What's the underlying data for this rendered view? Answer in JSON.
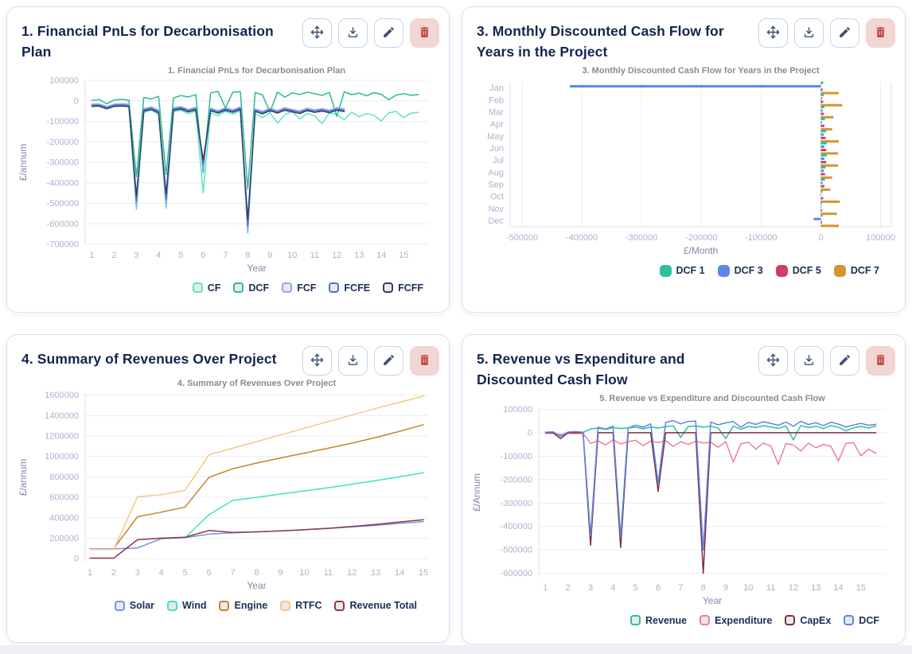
{
  "panels": [
    {
      "title": "1. Financial PnLs for Decarbonisation Plan"
    },
    {
      "title": "3. Monthly Discounted Cash Flow for Years in the Project"
    },
    {
      "title": "4. Summary of Revenues Over Project"
    },
    {
      "title": "5. Revenue vs Expenditure and Discounted Cash Flow"
    }
  ],
  "toolbar": {
    "buttons": [
      {
        "name": "move",
        "icon": "move-icon"
      },
      {
        "name": "download",
        "icon": "download-icon"
      },
      {
        "name": "edit",
        "icon": "pencil-icon"
      },
      {
        "name": "delete",
        "icon": "trash-icon"
      }
    ]
  },
  "colors": {
    "title_navy": "#14244e",
    "tick_label": "#a9b3cc",
    "axis_label": "#7f89a6",
    "chart_title_gray": "#8b8b8b",
    "grid": "#ebecf1",
    "panel_border": "#dcdff2",
    "button_icon": "#3f5175",
    "delete_icon": "#c2413b",
    "delete_bg": "#f2d6d4"
  },
  "chart_data": [
    {
      "type": "line",
      "title": "1. Financial PnLs for Decarbonisation Plan",
      "xlabel": "Year",
      "ylabel": "£/annum",
      "xlim": [
        0.7,
        16.1
      ],
      "ylim": [
        -700000,
        100000
      ],
      "xticks": [
        1,
        2,
        3,
        4,
        5,
        6,
        7,
        8,
        9,
        10,
        11,
        12,
        13,
        14,
        15
      ],
      "yticks": [
        100000,
        0,
        -100000,
        -200000,
        -300000,
        -400000,
        -500000,
        -600000,
        -700000
      ],
      "grid": "horizontal",
      "legend_position": "bottom-right",
      "legend_marker": "outline",
      "series": [
        {
          "name": "CF",
          "color": "#5ce4c2",
          "x0": 1,
          "dx": 0.3333,
          "y": [
            -20000,
            -18000,
            -33000,
            -19000,
            -17000,
            -21000,
            -530000,
            -58000,
            -44000,
            -68000,
            -525000,
            -52000,
            -46000,
            -64000,
            -50000,
            -450000,
            -58000,
            -72000,
            -52000,
            -66000,
            -48000,
            -640000,
            -62000,
            -82000,
            -58000,
            -108000,
            -68000,
            -52000,
            -88000,
            -62000,
            -72000,
            -112000,
            -58000,
            -68000,
            -92000,
            -55000,
            -78000,
            -62000,
            -70000,
            -98000,
            -58000,
            -52000,
            -82000,
            -60000,
            -56000
          ]
        },
        {
          "name": "DCF",
          "color": "#2bb99b",
          "x0": 1,
          "dx": 0.3333,
          "y": [
            3000,
            6000,
            -14000,
            4000,
            7000,
            3000,
            -370000,
            16000,
            9000,
            22000,
            -360000,
            14000,
            26000,
            19000,
            31000,
            -350000,
            39000,
            46000,
            -35000,
            43000,
            45000,
            -430000,
            41000,
            28000,
            -55000,
            43000,
            18000,
            39000,
            31000,
            42000,
            35000,
            27000,
            41000,
            -75000,
            44000,
            30000,
            38000,
            25000,
            40000,
            32000,
            5000,
            28000,
            35000,
            27000,
            31000
          ]
        },
        {
          "name": "FCF",
          "color": "#8fa7f3",
          "x0": 1,
          "dx": 0.3333,
          "y": [
            -16000,
            -15000,
            -28000,
            -16000,
            -14000,
            -17000,
            -520000,
            -38000,
            -30000,
            -45000,
            -515000,
            -34000,
            -28000,
            -42000,
            -32000,
            -330000,
            -36000,
            -48000,
            -34000,
            -44000,
            -30000,
            -645000,
            -40000,
            -52000,
            -36000,
            -48000,
            -34000,
            -42000,
            -50000,
            -36000,
            -44000,
            -38000,
            -46000,
            -34000,
            -40000
          ]
        },
        {
          "name": "FCFE",
          "color": "#5470c9",
          "x0": 1,
          "dx": 0.3333,
          "y": [
            -22000,
            -21000,
            -34000,
            -22000,
            -20000,
            -23000,
            -490000,
            -44000,
            -36000,
            -52000,
            -480000,
            -40000,
            -34000,
            -48000,
            -38000,
            -310000,
            -42000,
            -54000,
            -40000,
            -50000,
            -36000,
            -610000,
            -46000,
            -58000,
            -42000,
            -54000,
            -40000,
            -48000,
            -56000,
            -42000,
            -50000,
            -44000,
            -52000,
            -40000,
            -46000
          ]
        },
        {
          "name": "FCFF",
          "color": "#32415f",
          "x0": 1,
          "dx": 0.3333,
          "y": [
            -27000,
            -26000,
            -39000,
            -27000,
            -25000,
            -28000,
            -465000,
            -50000,
            -42000,
            -58000,
            -455000,
            -46000,
            -40000,
            -54000,
            -44000,
            -290000,
            -48000,
            -60000,
            -46000,
            -56000,
            -42000,
            -580000,
            -52000,
            -64000,
            -48000,
            -60000,
            -46000,
            -54000,
            -62000,
            -48000,
            -56000,
            -50000,
            -58000,
            -46000,
            -52000
          ]
        }
      ]
    },
    {
      "type": "bar",
      "title": "3. Monthly Discounted Cash Flow for Years in the Project",
      "xlabel": "£/Month",
      "ylabel": "",
      "categories": [
        "Jan",
        "Feb",
        "Mar",
        "Apr",
        "May",
        "Jun",
        "Jul",
        "Aug",
        "Sep",
        "Oct",
        "Nov",
        "Dec"
      ],
      "xlim": [
        -520000,
        118000
      ],
      "xticks": [
        -500000,
        -400000,
        -300000,
        -200000,
        -100000,
        0,
        100000
      ],
      "grid": "vertical",
      "legend_position": "bottom-right",
      "legend_marker": "filled",
      "series": [
        {
          "name": "DCF 1",
          "color": "#2dbfa2",
          "values": [
            4000,
            5000,
            6000,
            7000,
            9000,
            10000,
            10000,
            8000,
            7000,
            3000,
            2000,
            3000
          ]
        },
        {
          "name": "DCF 3",
          "color": "#5b87e8",
          "values": [
            -420000,
            2000,
            3000,
            2000,
            5000,
            6000,
            6000,
            5000,
            3000,
            1000,
            1000,
            -12000
          ]
        },
        {
          "name": "DCF 5",
          "color": "#cf3f63",
          "values": [
            3000,
            4000,
            5000,
            6000,
            8000,
            9000,
            9000,
            7000,
            6000,
            4000,
            2000,
            2000
          ]
        },
        {
          "name": "DCF 7",
          "color": "#d3952f",
          "values": [
            30000,
            36000,
            21000,
            19000,
            30000,
            29000,
            29000,
            19000,
            16000,
            32000,
            27000,
            30000
          ]
        }
      ]
    },
    {
      "type": "line",
      "title": "4. Summary of Revenues Over Project",
      "xlabel": "Year",
      "ylabel": "£/annum",
      "xlim": [
        0.8,
        15.2
      ],
      "ylim": [
        -30000,
        1620000
      ],
      "xticks": [
        1,
        2,
        3,
        4,
        5,
        6,
        7,
        8,
        9,
        10,
        11,
        12,
        13,
        14,
        15
      ],
      "yticks": [
        0,
        200000,
        400000,
        600000,
        800000,
        1000000,
        1200000,
        1400000,
        1600000
      ],
      "grid": "horizontal",
      "legend_position": "bottom-right",
      "legend_marker": "outline",
      "series": [
        {
          "name": "Solar",
          "color": "#6f96ea",
          "x": [
            1,
            2,
            3,
            4,
            5,
            6,
            7,
            8,
            9,
            10,
            11,
            12,
            13,
            14,
            15
          ],
          "y": [
            95000,
            95000,
            105000,
            195000,
            205000,
            240000,
            252000,
            262000,
            272000,
            283000,
            295000,
            310000,
            325000,
            345000,
            362000
          ]
        },
        {
          "name": "Wind",
          "color": "#3fe2c5",
          "x": [
            5,
            6,
            7,
            8,
            9,
            10,
            11,
            12,
            13,
            14,
            15
          ],
          "y": [
            205000,
            430000,
            570000,
            600000,
            632000,
            662000,
            694000,
            728000,
            764000,
            801000,
            840000
          ]
        },
        {
          "name": "Engine",
          "color": "#c8842f",
          "x": [
            2,
            3,
            4,
            5,
            6,
            7,
            8,
            9,
            10,
            11,
            12,
            13,
            14,
            15
          ],
          "y": [
            100000,
            410000,
            455000,
            505000,
            795000,
            880000,
            935000,
            985000,
            1032000,
            1080000,
            1130000,
            1185000,
            1246000,
            1310000
          ]
        },
        {
          "name": "RTFC",
          "color": "#f5c888",
          "x": [
            1,
            2,
            3,
            4,
            5,
            6,
            7,
            8,
            9,
            10,
            11,
            12,
            13,
            14,
            15
          ],
          "y": [
            90000,
            90000,
            605000,
            625000,
            670000,
            1015000,
            1080000,
            1145000,
            1210000,
            1275000,
            1340000,
            1405000,
            1470000,
            1530000,
            1590000
          ]
        },
        {
          "name": "Revenue Total",
          "color": "#8e3944",
          "x": [
            1,
            2,
            3,
            4,
            5,
            6,
            7,
            8,
            9,
            10,
            11,
            12,
            13,
            14,
            15
          ],
          "y": [
            5000,
            5000,
            185000,
            200000,
            210000,
            275000,
            257000,
            262000,
            271000,
            283000,
            297000,
            315000,
            335000,
            358000,
            380000
          ]
        }
      ]
    },
    {
      "type": "line",
      "title": "5. Revenue vs Expenditure and Discounted Cash Flow",
      "xlabel": "Year",
      "ylabel": "£/Annum",
      "xlim": [
        0.7,
        16.1
      ],
      "ylim": [
        -615000,
        105000
      ],
      "xticks": [
        1,
        2,
        3,
        4,
        5,
        6,
        7,
        8,
        9,
        10,
        11,
        12,
        13,
        14,
        15
      ],
      "yticks": [
        100000,
        0,
        -100000,
        -200000,
        -300000,
        -400000,
        -500000,
        -600000
      ],
      "grid": "horizontal",
      "legend_position": "bottom-right",
      "legend_marker": "outline",
      "series": [
        {
          "name": "Revenue",
          "color": "#2fbf9f",
          "x0": 1,
          "dx": 0.3333,
          "y": [
            1000,
            3000,
            -12000,
            2000,
            4000,
            1000,
            16000,
            20000,
            14000,
            22000,
            18000,
            21000,
            24000,
            17000,
            25000,
            20000,
            26000,
            30000,
            -20000,
            27000,
            29000,
            24000,
            28000,
            20000,
            -25000,
            29000,
            15000,
            27000,
            22000,
            30000,
            25000,
            19000,
            29000,
            -30000,
            31000,
            22000,
            28000,
            18000,
            30000,
            24000,
            8000,
            21000,
            27000,
            20000,
            29000
          ]
        },
        {
          "name": "Expenditure",
          "color": "#f07e95",
          "x0": 1,
          "dx": 0.3333,
          "y": [
            -2000,
            -3000,
            -8000,
            -2500,
            -3500,
            -3000,
            -45000,
            -35000,
            -52000,
            -30000,
            -48000,
            -38000,
            -32000,
            -55000,
            -36000,
            -42000,
            -34000,
            -58000,
            -38000,
            -50000,
            -36000,
            -44000,
            -40000,
            -62000,
            -38000,
            -125000,
            -48000,
            -40000,
            -70000,
            -44000,
            -56000,
            -135000,
            -46000,
            -52000,
            -78000,
            -44000,
            -64000,
            -50000,
            -58000,
            -120000,
            -46000,
            -42000,
            -98000,
            -70000,
            -88000
          ]
        },
        {
          "name": "CapEx",
          "color": "#7e2f3d",
          "x0": 1,
          "dx": 0.3333,
          "y": [
            0,
            0,
            -25000,
            0,
            0,
            0,
            -480000,
            0,
            0,
            0,
            -490000,
            0,
            0,
            0,
            0,
            -250000,
            0,
            0,
            0,
            0,
            0,
            -600000,
            0,
            0,
            0,
            0,
            0,
            0,
            0,
            0,
            0,
            0,
            0,
            0,
            0,
            0,
            0,
            0,
            0,
            0,
            0,
            0,
            0,
            0,
            0
          ]
        },
        {
          "name": "DCF",
          "color": "#5b87e8",
          "x0": 1,
          "dx": 0.3333,
          "y": [
            2000,
            4000,
            -16000,
            3000,
            5000,
            2000,
            -440000,
            24000,
            16000,
            28000,
            -445000,
            20000,
            32000,
            24000,
            38000,
            -215000,
            44000,
            52000,
            38000,
            48000,
            50000,
            -500000,
            46000,
            34000,
            42000,
            48000,
            24000,
            44000,
            36000,
            47000,
            40000,
            32000,
            46000,
            28000,
            49000,
            35000,
            43000,
            30000,
            45000,
            37000,
            25000,
            33000,
            40000,
            32000,
            36000
          ]
        }
      ]
    }
  ]
}
